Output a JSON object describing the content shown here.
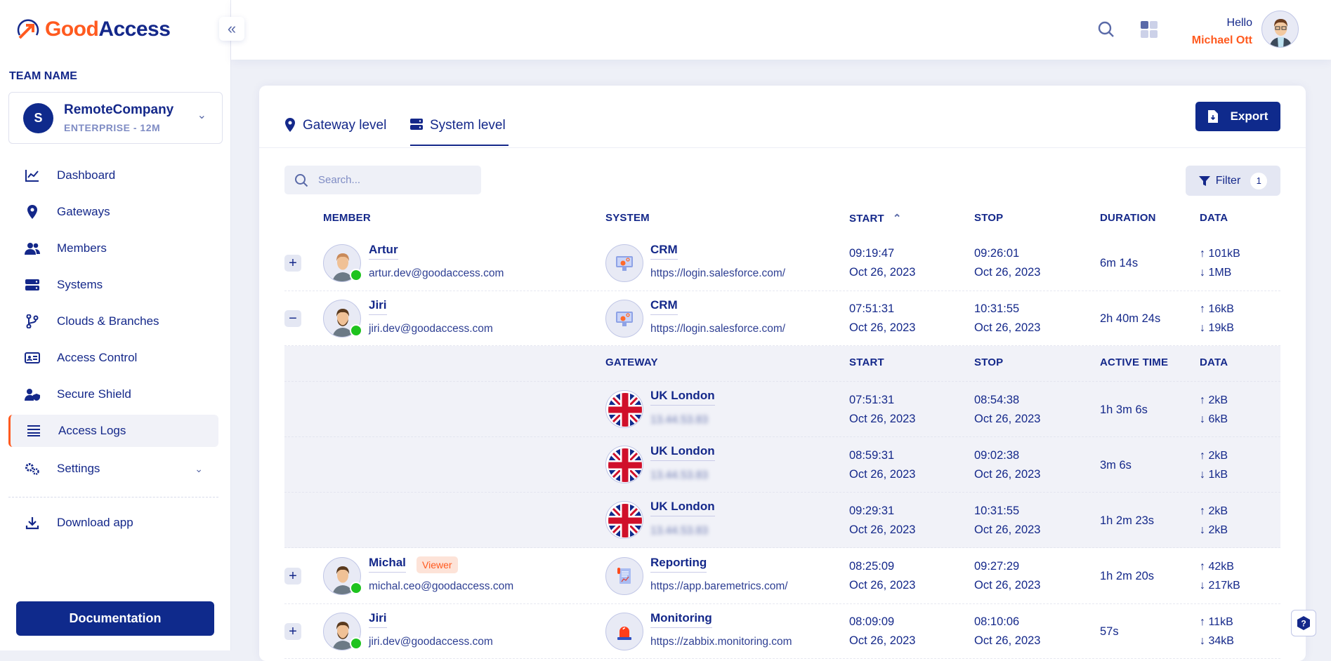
{
  "brand": {
    "logo_part1": "Good",
    "logo_part2": "Access",
    "accent": "#ff5a1f",
    "primary": "#0f2a8c"
  },
  "sidebar": {
    "team_label": "TEAM NAME",
    "team": {
      "initial": "S",
      "name": "RemoteCompany",
      "plan": "ENTERPRISE - 12M"
    },
    "items": [
      {
        "label": "Dashboard",
        "icon": "chart-line-icon"
      },
      {
        "label": "Gateways",
        "icon": "map-pin-icon"
      },
      {
        "label": "Members",
        "icon": "users-icon"
      },
      {
        "label": "Systems",
        "icon": "server-icon"
      },
      {
        "label": "Clouds & Branches",
        "icon": "branch-icon"
      },
      {
        "label": "Access Control",
        "icon": "id-card-icon"
      },
      {
        "label": "Secure Shield",
        "icon": "user-shield-icon"
      },
      {
        "label": "Access Logs",
        "icon": "list-icon",
        "active": true
      },
      {
        "label": "Settings",
        "icon": "gears-icon"
      }
    ],
    "download": "Download app",
    "documentation": "Documentation"
  },
  "header": {
    "hello": "Hello",
    "user_name": "Michael Ott"
  },
  "main": {
    "tabs": [
      {
        "label": "Gateway level",
        "active": false
      },
      {
        "label": "System level",
        "active": true
      }
    ],
    "export_label": "Export",
    "search_placeholder": "Search...",
    "filter_label": "Filter",
    "filter_count": "1",
    "columns": {
      "member": "MEMBER",
      "system": "SYSTEM",
      "start": "START",
      "stop": "STOP",
      "duration": "DURATION",
      "data": "DATA"
    },
    "sub_columns": {
      "gateway": "GATEWAY",
      "start": "START",
      "stop": "STOP",
      "active_time": "ACTIVE TIME",
      "data": "DATA"
    },
    "rows": [
      {
        "expanded": false,
        "name": "Artur",
        "email": "artur.dev@goodaccess.com",
        "online": true,
        "system": "CRM",
        "url": "https://login.salesforce.com/",
        "system_icon": "crm-icon",
        "start_time": "09:19:47",
        "start_date": "Oct 26, 2023",
        "stop_time": "09:26:01",
        "stop_date": "Oct 26, 2023",
        "duration": "6m 14s",
        "up": "101kB",
        "down": "1MB"
      },
      {
        "expanded": true,
        "name": "Jiri",
        "email": "jiri.dev@goodaccess.com",
        "online": true,
        "system": "CRM",
        "url": "https://login.salesforce.com/",
        "system_icon": "crm-icon",
        "start_time": "07:51:31",
        "start_date": "Oct 26, 2023",
        "stop_time": "10:31:55",
        "stop_date": "Oct 26, 2023",
        "duration": "2h 40m 24s",
        "up": "16kB",
        "down": "19kB",
        "gateways": [
          {
            "name": "UK London",
            "ip": "13.44.53.83",
            "start_time": "07:51:31",
            "start_date": "Oct 26, 2023",
            "stop_time": "08:54:38",
            "stop_date": "Oct 26, 2023",
            "active_time": "1h 3m 6s",
            "up": "2kB",
            "down": "6kB"
          },
          {
            "name": "UK London",
            "ip": "13.44.53.83",
            "start_time": "08:59:31",
            "start_date": "Oct 26, 2023",
            "stop_time": "09:02:38",
            "stop_date": "Oct 26, 2023",
            "active_time": "3m 6s",
            "up": "2kB",
            "down": "1kB"
          },
          {
            "name": "UK London",
            "ip": "13.44.53.83",
            "start_time": "09:29:31",
            "start_date": "Oct 26, 2023",
            "stop_time": "10:31:55",
            "stop_date": "Oct 26, 2023",
            "active_time": "1h 2m 23s",
            "up": "2kB",
            "down": "2kB"
          }
        ]
      },
      {
        "expanded": false,
        "name": "Michal",
        "badge": "Viewer",
        "email": "michal.ceo@goodaccess.com",
        "online": true,
        "system": "Reporting",
        "url": "https://app.baremetrics.com/",
        "system_icon": "report-icon",
        "start_time": "08:25:09",
        "start_date": "Oct 26, 2023",
        "stop_time": "09:27:29",
        "stop_date": "Oct 26, 2023",
        "duration": "1h 2m 20s",
        "up": "42kB",
        "down": "217kB"
      },
      {
        "expanded": false,
        "name": "Jiri",
        "email": "jiri.dev@goodaccess.com",
        "online": true,
        "system": "Monitoring",
        "url": "https://zabbix.monitoring.com",
        "system_icon": "alarm-icon",
        "start_time": "08:09:09",
        "start_date": "Oct 26, 2023",
        "stop_time": "08:10:06",
        "stop_date": "Oct 26, 2023",
        "duration": "57s",
        "up": "11kB",
        "down": "34kB"
      }
    ]
  }
}
